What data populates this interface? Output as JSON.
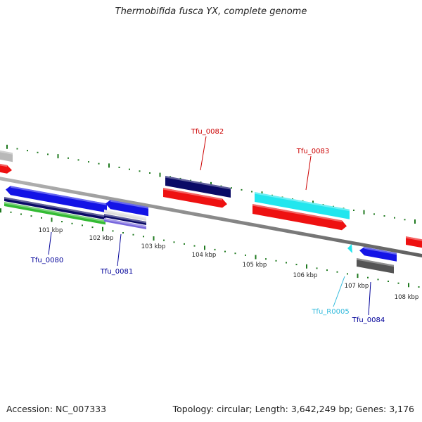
{
  "title": "Thermobifida fusca YX, complete genome",
  "footer": {
    "accession": "Accession: NC_007333",
    "summary": "Topology: circular; Length: 3,642,249 bp; Genes: 3,176"
  },
  "colors": {
    "backbone": "#8a8a8a",
    "ticks": "#1f7a1f",
    "gene_forward": "#1414e6",
    "gene_navy": "#0a0a66",
    "gene_red": "#ee1111",
    "gene_cyan": "#22e6ee",
    "gene_green": "#33bb33",
    "gene_gray": "#555555",
    "label_red": "#cc0000",
    "label_blue": "#000099",
    "label_cyan": "#33bbdd"
  },
  "scale_labels": [
    "101 kbp",
    "102 kbp",
    "103 kbp",
    "104 kbp",
    "105 kbp",
    "106 kbp",
    "107 kbp",
    "108 kbp"
  ],
  "gene_labels": [
    {
      "id": "tfu-0082",
      "text": "Tfu_0082",
      "color": "#cc0000"
    },
    {
      "id": "tfu-0083",
      "text": "Tfu_0083",
      "color": "#cc0000"
    },
    {
      "id": "tfu-0080",
      "text": "Tfu_0080",
      "color": "#000099"
    },
    {
      "id": "tfu-0081",
      "text": "Tfu_0081",
      "color": "#000099"
    },
    {
      "id": "tfu-r0005",
      "text": "Tfu_R0005",
      "color": "#33bbdd"
    },
    {
      "id": "tfu-0084",
      "text": "Tfu_0084",
      "color": "#000099"
    }
  ]
}
